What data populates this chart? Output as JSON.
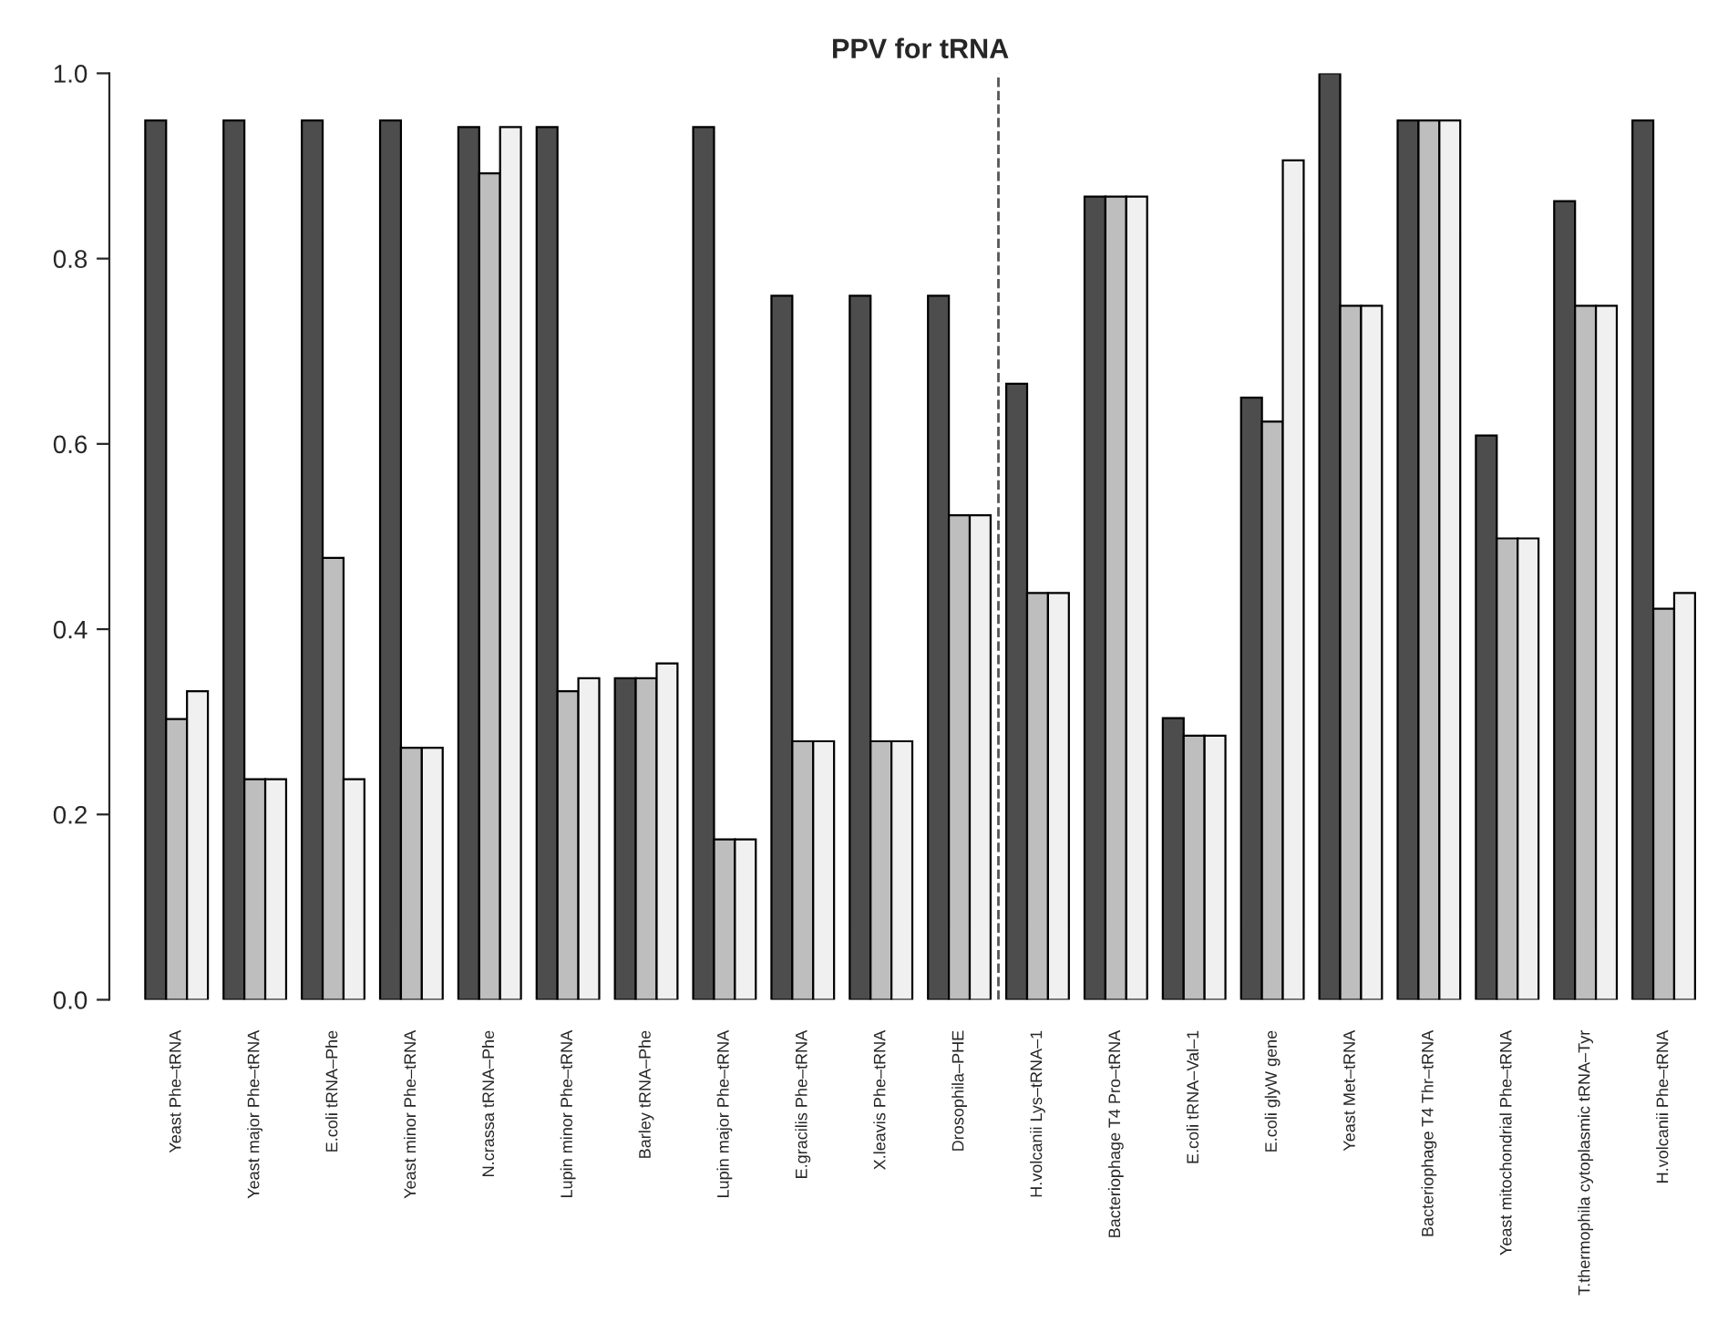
{
  "chart_data": {
    "type": "bar",
    "title": "PPV for tRNA",
    "categories": [
      "Yeast Phe–tRNA",
      "Yeast major Phe–tRNA",
      "E.coli tRNA–Phe",
      "Yeast minor Phe–tRNA",
      "N.crassa tRNA–Phe",
      "Lupin minor Phe–tRNA",
      "Barley tRNA–Phe",
      "Lupin major Phe–tRNA",
      "E.gracilis Phe–tRNA",
      "X.leavis Phe–tRNA",
      "Drosophila–PHE",
      "H.volcanii Lys–tRNA–1",
      "Bacteriophage T4 Pro–tRNA",
      "E.coli tRNA–Val–1",
      "E.coli glyW gene",
      "Yeast Met–tRNA",
      "Bacteriophage T4 Thr–tRNA",
      "Yeast mitochondrial Phe–tRNA",
      "T.thermophila cytoplasmic tRNA–Tyr",
      "H.volcanii Phe–tRNA"
    ],
    "series": [
      {
        "color": "#4d4d4d",
        "values": [
          0.949,
          0.949,
          0.949,
          0.949,
          0.942,
          0.942,
          0.347,
          0.942,
          0.76,
          0.76,
          0.76,
          0.665,
          0.867,
          0.304,
          0.65,
          1.0,
          0.949,
          0.609,
          0.862,
          0.949
        ]
      },
      {
        "color": "#bebebe",
        "values": [
          0.303,
          0.238,
          0.477,
          0.272,
          0.892,
          0.333,
          0.347,
          0.173,
          0.279,
          0.279,
          0.523,
          0.439,
          0.867,
          0.285,
          0.624,
          0.749,
          0.949,
          0.498,
          0.749,
          0.422
        ]
      },
      {
        "color": "#f0f0f0",
        "values": [
          0.333,
          0.238,
          0.238,
          0.272,
          0.942,
          0.347,
          0.363,
          0.173,
          0.279,
          0.279,
          0.523,
          0.439,
          0.867,
          0.285,
          0.906,
          0.749,
          0.949,
          0.498,
          0.749,
          0.439
        ]
      }
    ],
    "ylim": [
      0,
      1.0
    ],
    "yticks": [
      {
        "value": 0,
        "label": "0.0"
      },
      0.2,
      0.4,
      0.6,
      0.8,
      {
        "value": 1.0,
        "label": "1.0"
      }
    ],
    "grid": false
  }
}
